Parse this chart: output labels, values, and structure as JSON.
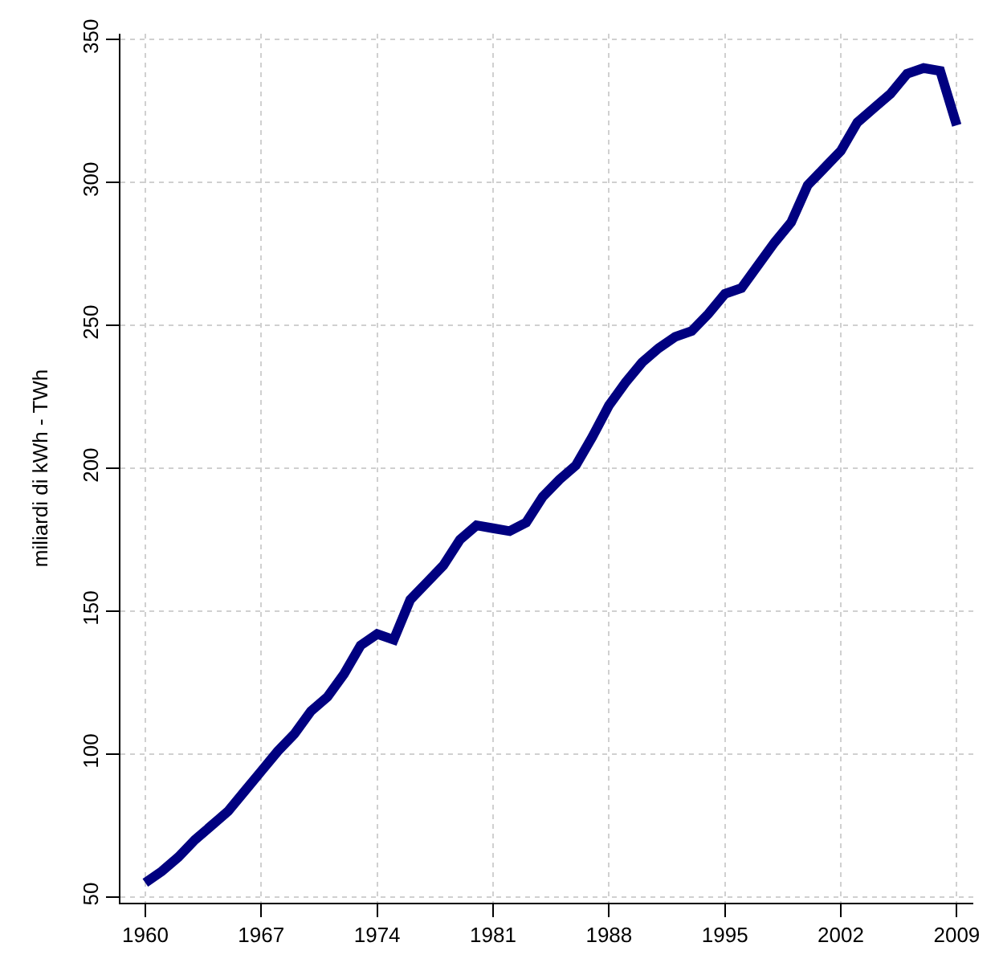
{
  "chart_data": {
    "type": "line",
    "ylabel": "miliardi di kWh - TWh",
    "x": [
      1960,
      1961,
      1962,
      1963,
      1964,
      1965,
      1966,
      1967,
      1968,
      1969,
      1970,
      1971,
      1972,
      1973,
      1974,
      1975,
      1976,
      1977,
      1978,
      1979,
      1980,
      1981,
      1982,
      1983,
      1984,
      1985,
      1986,
      1987,
      1988,
      1989,
      1990,
      1991,
      1992,
      1993,
      1994,
      1995,
      1996,
      1997,
      1998,
      1999,
      2000,
      2001,
      2002,
      2003,
      2004,
      2005,
      2006,
      2007,
      2008,
      2009
    ],
    "series": [
      {
        "color": "#000080",
        "values": [
          55,
          59,
          64,
          70,
          75,
          80,
          87,
          94,
          101,
          107,
          115,
          120,
          128,
          138,
          142,
          140,
          154,
          160,
          166,
          175,
          180,
          179,
          178,
          181,
          190,
          196,
          201,
          211,
          222,
          230,
          237,
          242,
          246,
          248,
          254,
          261,
          263,
          271,
          279,
          286,
          299,
          305,
          311,
          321,
          326,
          331,
          338,
          340,
          339,
          320
        ]
      }
    ],
    "xlim": [
      1958.5,
      2010
    ],
    "ylim": [
      48,
      352
    ],
    "xticks": [
      1960,
      1967,
      1974,
      1981,
      1988,
      1995,
      2002,
      2009
    ],
    "yticks": [
      50,
      100,
      150,
      200,
      250,
      300,
      350
    ],
    "grid": true,
    "line_style": "solid",
    "marker": "none"
  }
}
